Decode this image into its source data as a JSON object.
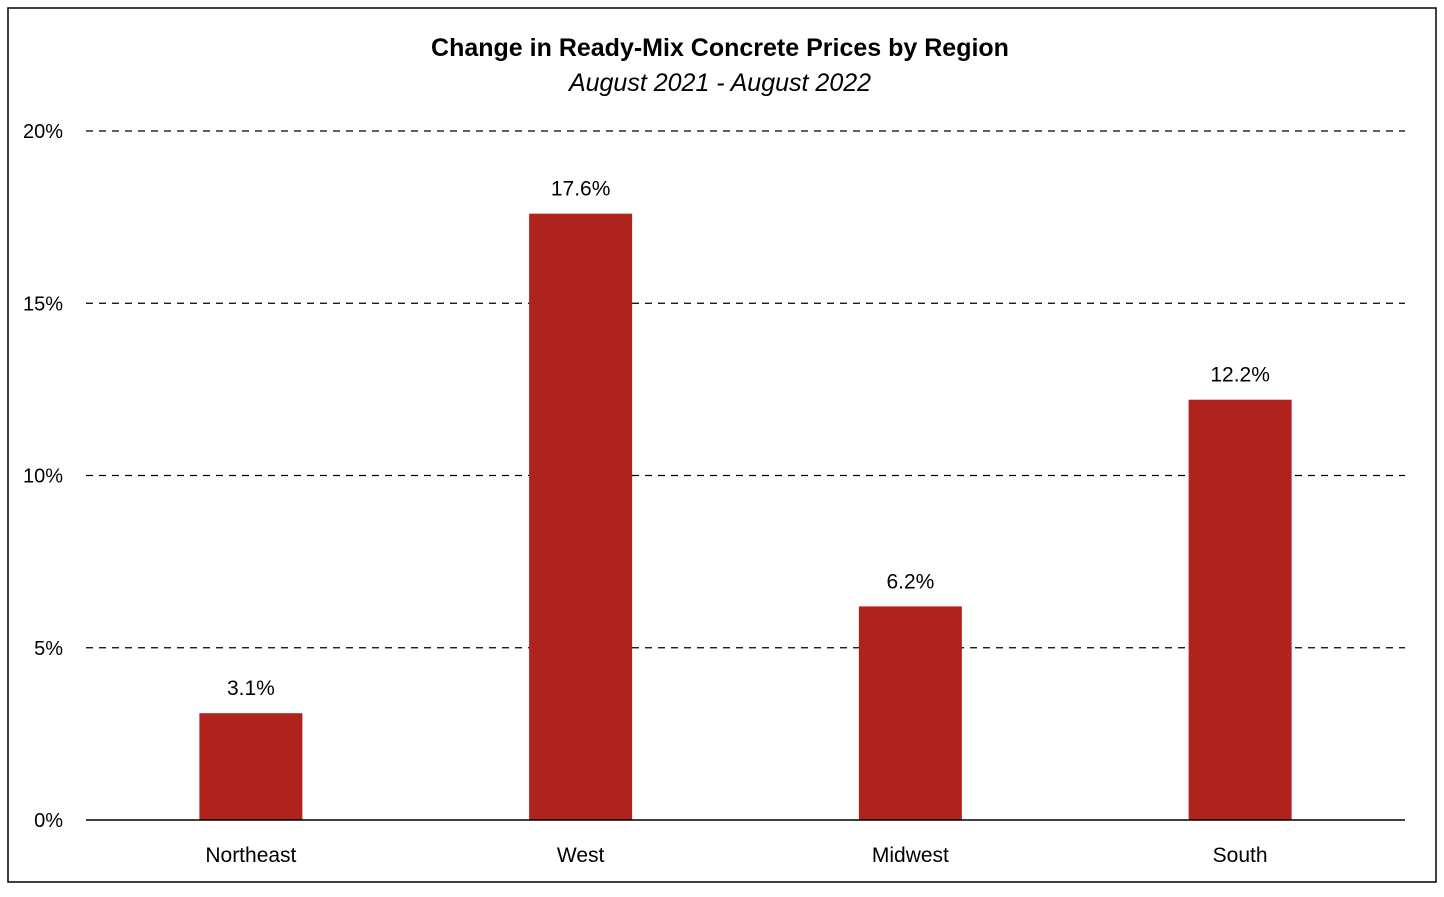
{
  "chart_data": {
    "type": "bar",
    "title": "Change in Ready-Mix Concrete Prices by Region",
    "subtitle": "August 2021 - August 2022",
    "categories": [
      "Northeast",
      "West",
      "Midwest",
      "South"
    ],
    "values": [
      3.1,
      17.6,
      6.2,
      12.2
    ],
    "data_labels": [
      "3.1%",
      "17.6%",
      "6.2%",
      "12.2%"
    ],
    "ylim": [
      0,
      20
    ],
    "yticks": [
      0,
      5,
      10,
      15,
      20
    ],
    "ytick_labels": [
      "0%",
      "5%",
      "10%",
      "15%",
      "20%"
    ],
    "grid": "dashed horizontal",
    "legend": "none",
    "bar_color": "#B0221C"
  }
}
